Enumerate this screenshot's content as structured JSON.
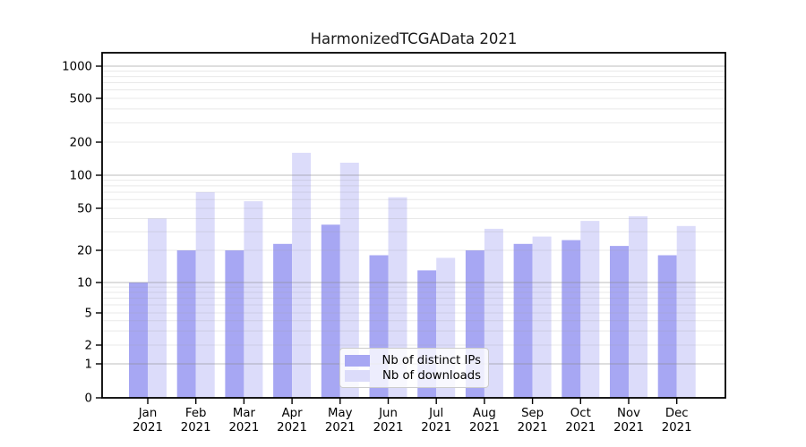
{
  "figure": {
    "title": "HarmonizedTCGAData 2021"
  },
  "chart_data": {
    "type": "bar",
    "title": "HarmonizedTCGAData 2021",
    "xlabel": "",
    "ylabel": "",
    "categories": [
      "Jan 2021",
      "Feb 2021",
      "Mar 2021",
      "Apr 2021",
      "May 2021",
      "Jun 2021",
      "Jul 2021",
      "Aug 2021",
      "Sep 2021",
      "Oct 2021",
      "Nov 2021",
      "Dec 2021"
    ],
    "month_abbrevs": [
      "Jan",
      "Feb",
      "Mar",
      "Apr",
      "May",
      "Jun",
      "Jul",
      "Aug",
      "Sep",
      "Oct",
      "Nov",
      "Dec"
    ],
    "year_label": "2021",
    "series": [
      {
        "name": "Nb of distinct IPs",
        "color": "#a7a7f3",
        "values": [
          10,
          20,
          20,
          23,
          35,
          18,
          13,
          20,
          23,
          25,
          22,
          18
        ]
      },
      {
        "name": "Nb of downloads",
        "color": "#dcdcfa",
        "values": [
          40,
          70,
          58,
          160,
          130,
          63,
          17,
          32,
          27,
          38,
          42,
          34
        ]
      }
    ],
    "yscale": "log-like with 1-2-5 labeled ticks and linear 0 baseline",
    "ytick_values": [
      0,
      1,
      2,
      5,
      10,
      20,
      50,
      100,
      200,
      500,
      1000
    ],
    "ytick_labels": [
      "0",
      "1",
      "2",
      "5",
      "10",
      "20",
      "50",
      "100",
      "200",
      "500",
      "1000"
    ],
    "ylim": [
      0,
      1300
    ],
    "grid": "horizontal; major gridlines at 1,10,100,1000; light minor gridlines at 2-9 multiples",
    "legend": {
      "labels": [
        "Nb of distinct IPs",
        "Nb of downloads"
      ],
      "location": "inside lower-center"
    },
    "colors": {
      "bar_ips": "#a7a7f3",
      "bar_downloads": "#dcdcfa",
      "major_grid": "#c9c9c9",
      "minor_grid": "#e9e9e9",
      "spine": "#000000",
      "text": "#000000",
      "legend_border": "#cccccc"
    }
  }
}
